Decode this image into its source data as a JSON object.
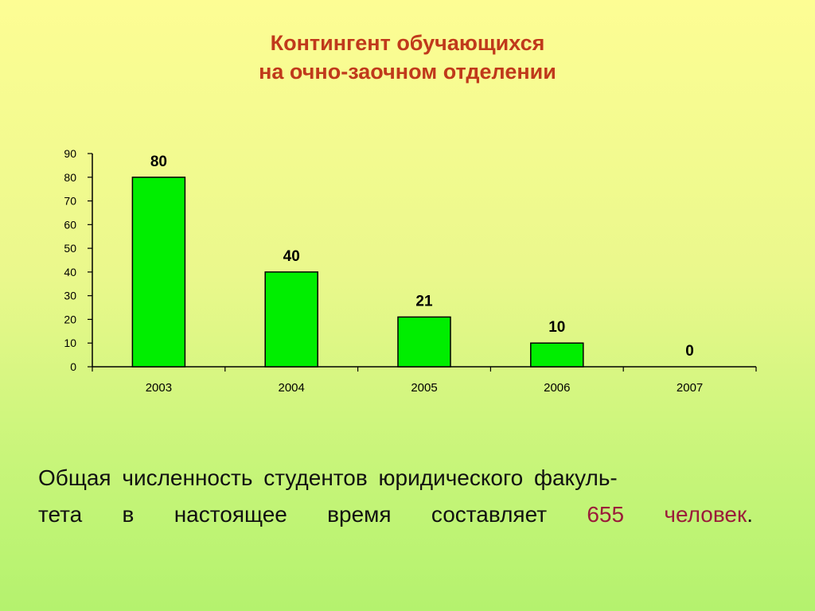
{
  "title": {
    "line1": "Контингент обучающихся",
    "line2": "на очно-заочном отделении"
  },
  "chart_data": {
    "type": "bar",
    "categories": [
      "2003",
      "2004",
      "2005",
      "2006",
      "2007"
    ],
    "values": [
      80,
      40,
      21,
      10,
      0
    ],
    "data_labels": [
      "80",
      "40",
      "21",
      "10",
      "0"
    ],
    "ylim": [
      0,
      90
    ],
    "yticks": [
      0,
      10,
      20,
      30,
      40,
      50,
      60,
      70,
      80,
      90
    ],
    "grid": false,
    "legend": "none",
    "title": "",
    "xlabel": "",
    "ylabel": "",
    "colors": {
      "bar_fill": "#00ee00",
      "bar_stroke": "#000000",
      "axis": "#000000",
      "title": "#c0391b",
      "highlight": "#9b1c3a"
    }
  },
  "caption": {
    "line1": "Общая численность студентов  юридического факуль-",
    "line2_words": [
      "тета",
      "в",
      "настоящее",
      "время",
      "составляет"
    ],
    "count": "655",
    "unit": "человек",
    "end": "."
  }
}
